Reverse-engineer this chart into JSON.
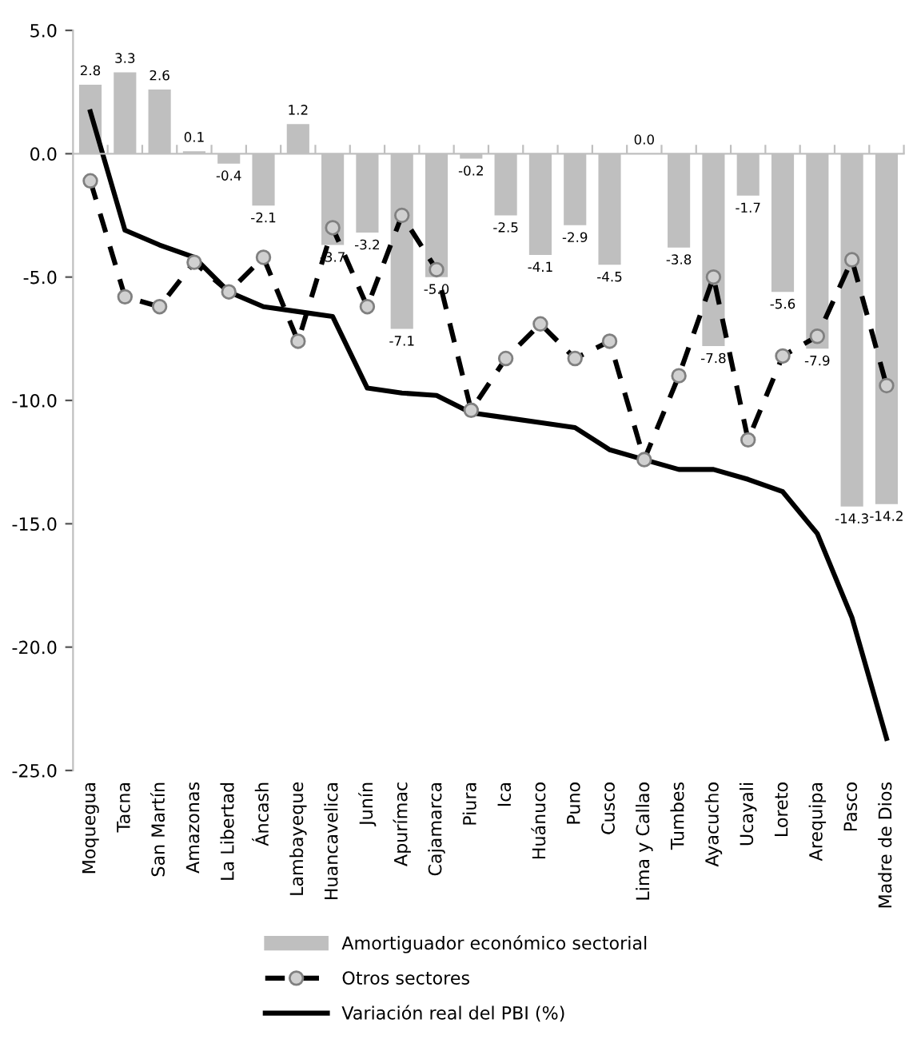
{
  "chart_data": {
    "type": "bar",
    "categories": [
      "Moquegua",
      "Tacna",
      "San Martín",
      "Amazonas",
      "La Libertad",
      "Áncash",
      "Lambayeque",
      "Huancavelica",
      "Junín",
      "Apurímac",
      "Cajamarca",
      "Piura",
      "Ica",
      "Huánuco",
      "Puno",
      "Cusco",
      "Lima y Callao",
      "Tumbes",
      "Ayacucho",
      "Ucayali",
      "Loreto",
      "Arequipa",
      "Pasco",
      "Madre de Dios"
    ],
    "series": [
      {
        "name": "Amortiguador económico sectorial",
        "color": "#bfbfbf",
        "value_labels": [
          "2.8",
          "3.3",
          "2.6",
          "0.1",
          "-0.4",
          "-2.1",
          "1.2",
          "-3.7",
          "-3.2",
          "-7.1",
          "-5.0",
          "-0.2",
          "-2.5",
          "-4.1",
          "-2.9",
          "-4.5",
          "0.0",
          "-3.8",
          "-7.8",
          "-1.7",
          "-5.6",
          "-7.9",
          "-14.3",
          "-14.2"
        ],
        "values": [
          2.8,
          3.3,
          2.6,
          0.1,
          -0.4,
          -2.1,
          1.2,
          -3.7,
          -3.2,
          -7.1,
          -5.0,
          -0.2,
          -2.5,
          -4.1,
          -2.9,
          -4.5,
          0.0,
          -3.8,
          -7.8,
          -1.7,
          -5.6,
          -7.9,
          -14.3,
          -14.2
        ]
      },
      {
        "name": "Otros sectores",
        "type": "line",
        "color": "#000000",
        "line_style": "dashed",
        "marker": "circle",
        "values": [
          -1.1,
          -5.8,
          -6.2,
          -4.4,
          -5.6,
          -4.2,
          -7.6,
          -3.0,
          -6.2,
          -2.5,
          -4.7,
          -10.4,
          -8.3,
          -6.9,
          -8.3,
          -7.6,
          -12.4,
          -9.0,
          -5.0,
          -11.6,
          -8.2,
          -7.4,
          -4.3,
          -9.4
        ]
      },
      {
        "name": "Variación real del PBI (%)",
        "type": "line",
        "color": "#000000",
        "line_style": "solid",
        "marker": "none",
        "values": [
          1.7,
          -3.1,
          -3.7,
          -4.2,
          -5.6,
          -6.2,
          -6.4,
          -6.6,
          -9.5,
          -9.7,
          -9.8,
          -10.5,
          -10.7,
          -10.9,
          -11.1,
          -12.0,
          -12.4,
          -12.8,
          -12.8,
          -13.2,
          -13.7,
          -15.4,
          -18.8,
          -23.7
        ]
      }
    ],
    "ylim": [
      -25,
      5
    ],
    "yticks": [
      {
        "value": -25,
        "label": "-25.0"
      },
      {
        "value": -20,
        "label": "-20.0"
      },
      {
        "value": -15,
        "label": "-15.0"
      },
      {
        "value": -10,
        "label": "-10.0"
      },
      {
        "value": -5,
        "label": "-5.0"
      },
      {
        "value": 0,
        "label": "0.0"
      },
      {
        "value": 5,
        "label": "5.0"
      }
    ],
    "legend": "bottom"
  }
}
